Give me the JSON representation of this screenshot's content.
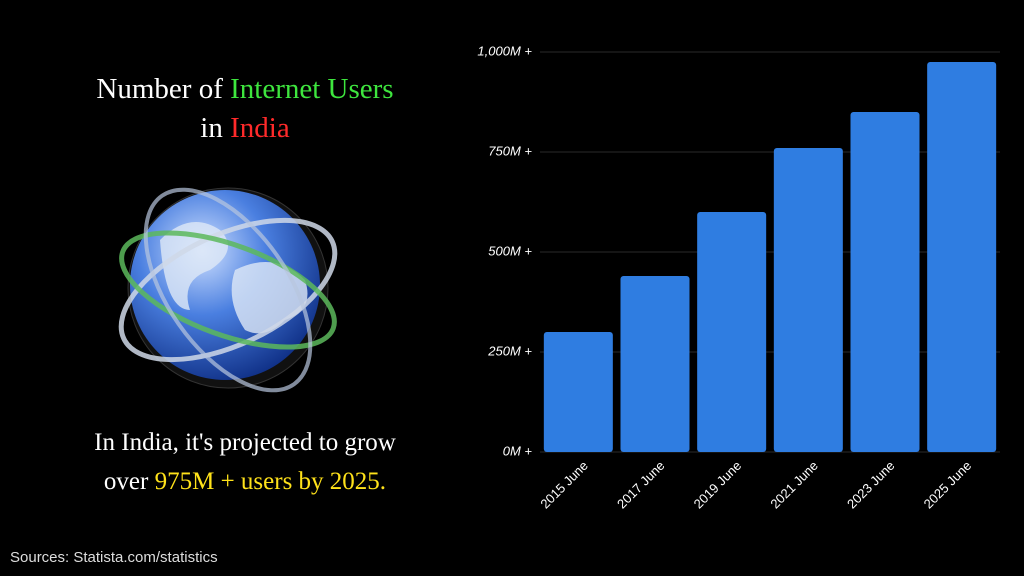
{
  "slide": {
    "title_parts": [
      "Number of",
      "Internet Users",
      "in",
      "India"
    ],
    "caption_parts": [
      "In India, it's projected to grow",
      "over",
      "975M + users by 2025."
    ],
    "source": "Sources:  Statista.com/statistics"
  },
  "chart_data": {
    "type": "bar",
    "categories": [
      "2015 June",
      "2017 June",
      "2019 June",
      "2021 June",
      "2023 June",
      "2025 June"
    ],
    "values": [
      300,
      440,
      600,
      760,
      850,
      975
    ],
    "color": "#2f7de1",
    "ylim": [
      0,
      1000
    ],
    "yticks": [
      {
        "value": 0,
        "label": "0M +"
      },
      {
        "value": 250,
        "label": "250M +"
      },
      {
        "value": 500,
        "label": "500M +"
      },
      {
        "value": 750,
        "label": "750M +"
      },
      {
        "value": 1000,
        "label": "1,000M +"
      }
    ],
    "grid": true
  }
}
